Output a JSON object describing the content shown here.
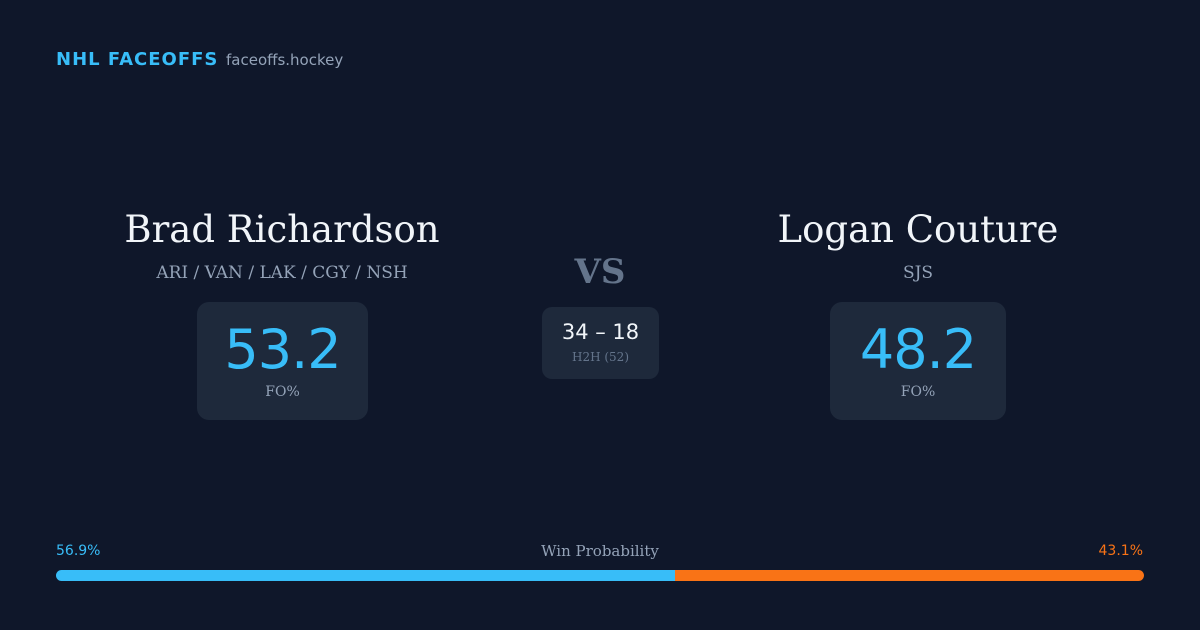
{
  "header": {
    "brand": "NHL FACEOFFS",
    "site": "faceoffs.hockey"
  },
  "players": [
    {
      "name": "Brad Richardson",
      "teams": "ARI / VAN / LAK / CGY / NSH",
      "fo_pct": 53.2,
      "fo_label": "FO%"
    },
    {
      "name": "Logan Couture",
      "teams": "SJS",
      "fo_pct": 48.2,
      "fo_label": "FO%"
    }
  ],
  "vs": "VS",
  "h2h": {
    "score": "34 – 18",
    "label": "H2H (52)"
  },
  "win_probability": {
    "title": "Win Probability",
    "left": {
      "value": 56.9,
      "label": "56.9%"
    },
    "right": {
      "value": 43.1,
      "label": "43.1%"
    }
  }
}
